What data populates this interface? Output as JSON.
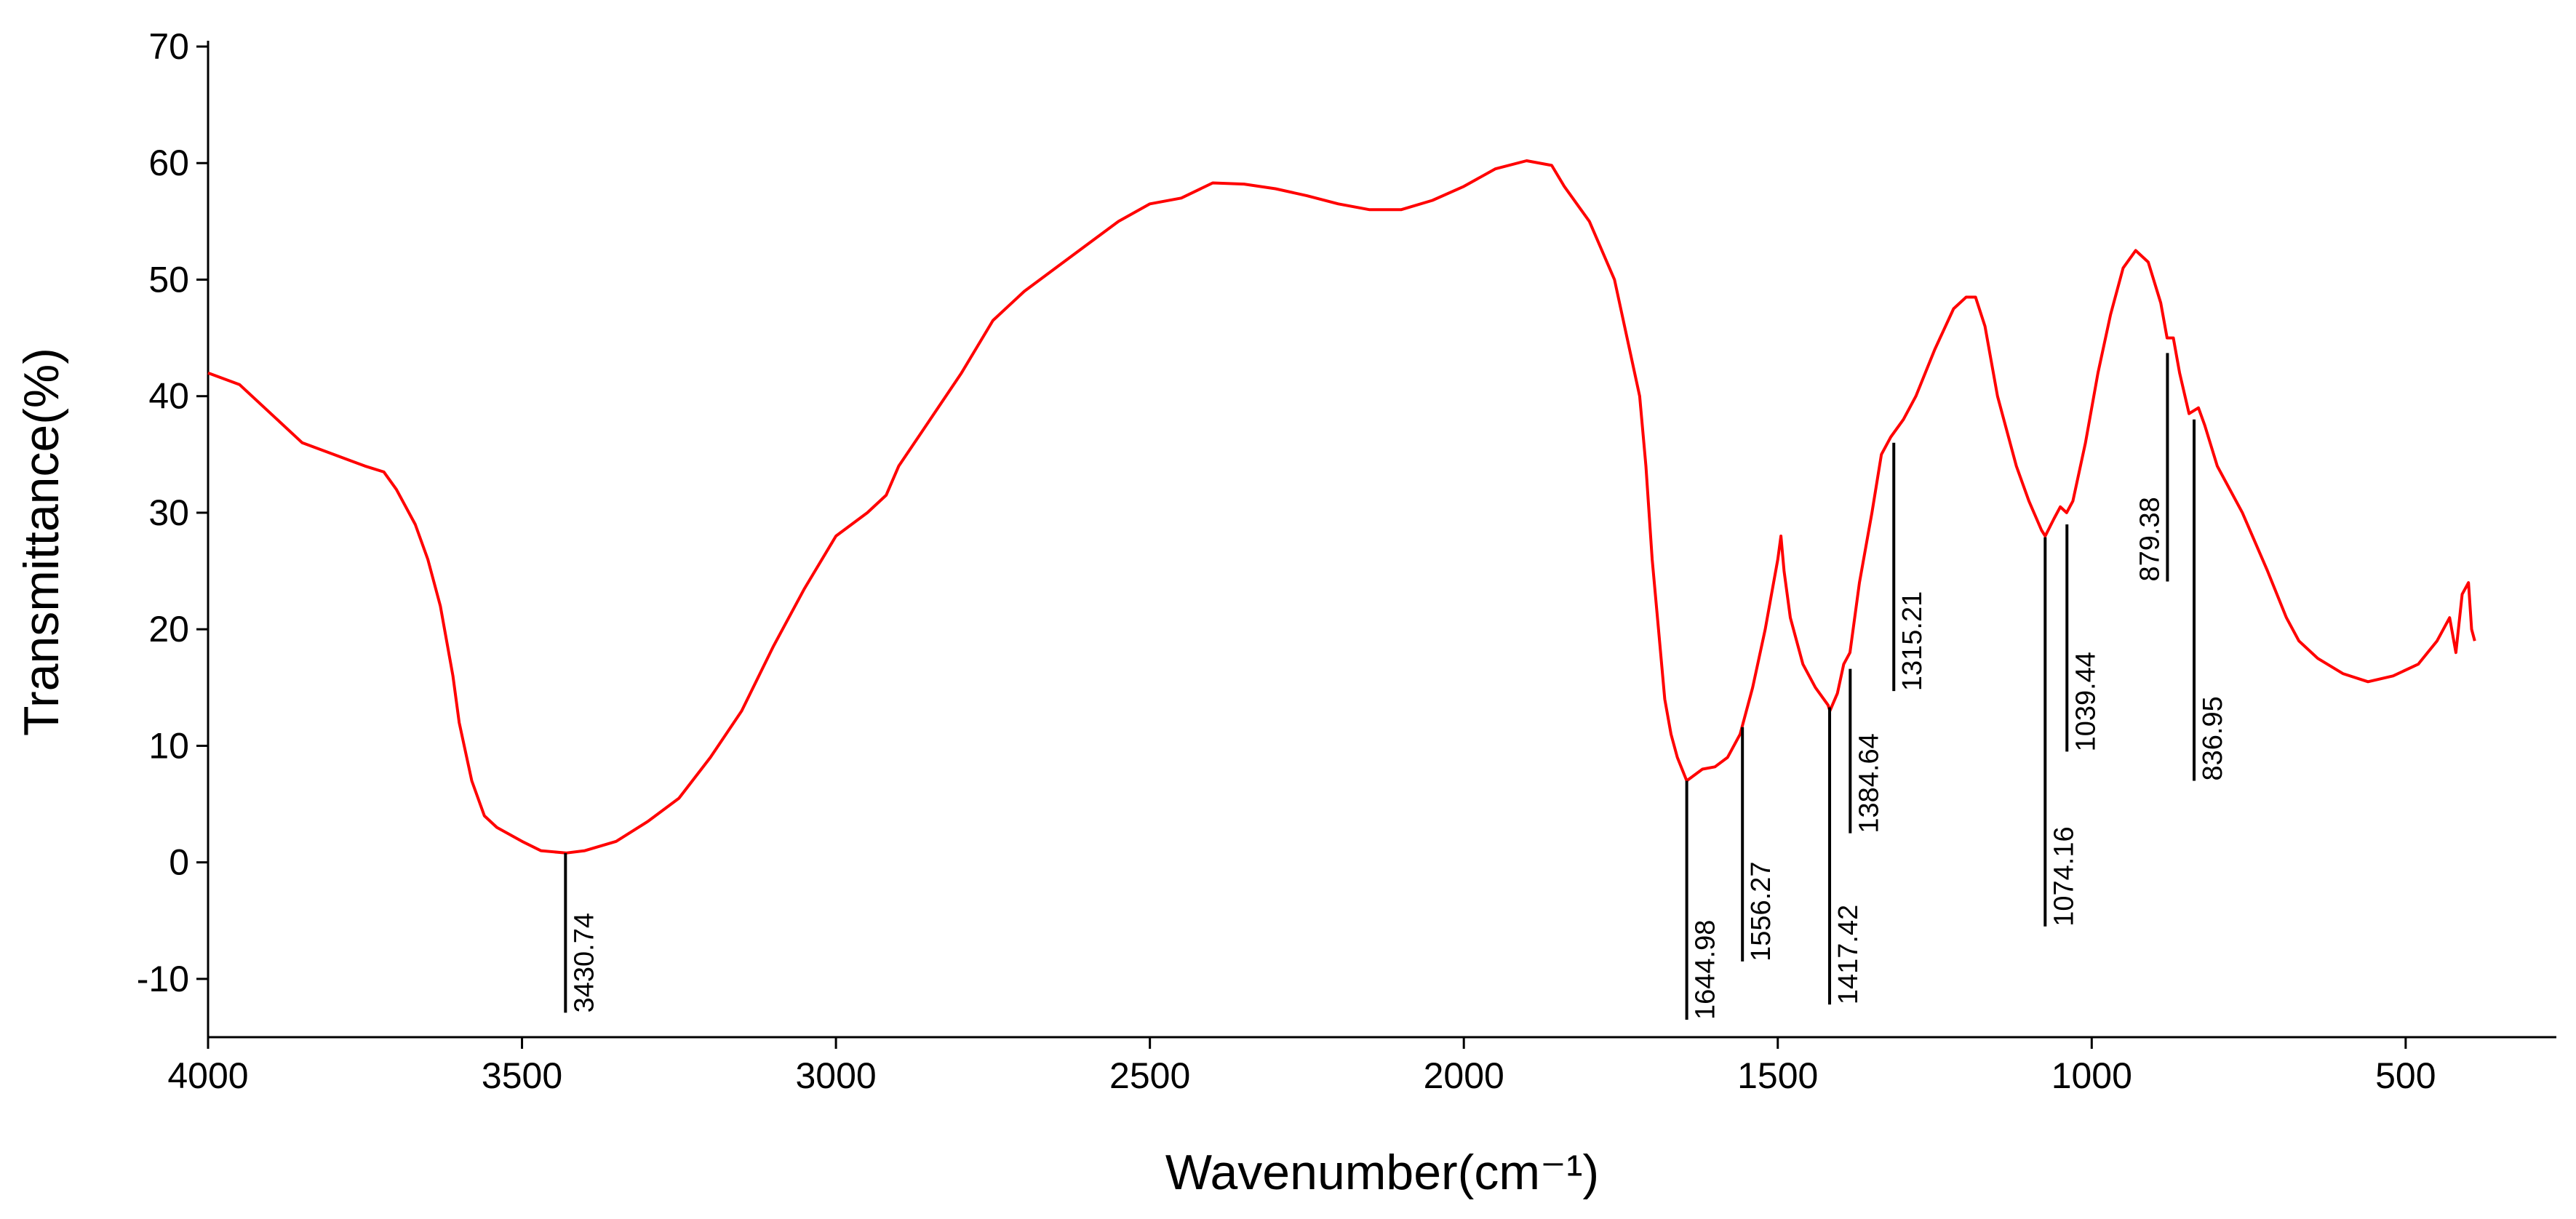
{
  "chart_data": {
    "type": "line",
    "xlabel": "Wavenumber(cm⁻¹)",
    "ylabel": "Transmittance(%)",
    "xlim": [
      4000,
      260
    ],
    "ylim": [
      -15,
      70
    ],
    "xticks": [
      4000,
      3500,
      3000,
      2500,
      2000,
      1500,
      1000,
      500
    ],
    "yticks": [
      -10,
      0,
      10,
      20,
      30,
      40,
      50,
      60,
      70
    ],
    "series": [
      {
        "color": "#ff0000",
        "x": [
          4000,
          3950,
          3900,
          3850,
          3800,
          3750,
          3720,
          3700,
          3670,
          3650,
          3630,
          3610,
          3600,
          3580,
          3560,
          3540,
          3500,
          3470,
          3430,
          3400,
          3350,
          3300,
          3250,
          3200,
          3150,
          3100,
          3050,
          3000,
          2950,
          2920,
          2900,
          2850,
          2800,
          2750,
          2700,
          2650,
          2600,
          2550,
          2500,
          2450,
          2400,
          2350,
          2300,
          2250,
          2200,
          2150,
          2100,
          2050,
          2000,
          1950,
          1900,
          1860,
          1840,
          1800,
          1760,
          1740,
          1720,
          1710,
          1700,
          1690,
          1680,
          1670,
          1660,
          1645,
          1620,
          1600,
          1580,
          1560,
          1540,
          1520,
          1510,
          1500,
          1495,
          1490,
          1480,
          1460,
          1440,
          1420,
          1417,
          1405,
          1395,
          1385,
          1370,
          1350,
          1335,
          1320,
          1300,
          1280,
          1250,
          1220,
          1200,
          1185,
          1170,
          1150,
          1120,
          1100,
          1080,
          1074,
          1060,
          1050,
          1040,
          1030,
          1010,
          990,
          970,
          950,
          930,
          910,
          890,
          880,
          870,
          860,
          845,
          830,
          820,
          800,
          760,
          720,
          690,
          670,
          640,
          600,
          560,
          520,
          480,
          450,
          430,
          420,
          410,
          400,
          395,
          390
        ],
        "values": [
          42,
          41,
          38.5,
          36,
          35,
          34,
          33.5,
          32,
          29,
          26,
          22,
          16,
          12,
          7,
          4,
          3,
          1.8,
          1,
          0.8,
          1,
          1.8,
          3.5,
          5.5,
          9,
          13,
          18.5,
          23.5,
          28,
          30,
          31.5,
          34,
          38,
          42,
          46.5,
          49,
          51,
          53,
          55,
          56.5,
          57,
          58.3,
          58.2,
          57.8,
          57.2,
          56.5,
          56,
          56,
          56.8,
          58,
          59.5,
          60.2,
          59.8,
          58,
          55,
          50,
          45,
          40,
          34,
          26,
          20,
          14,
          11,
          9,
          7,
          8,
          8.2,
          9,
          11,
          15,
          20,
          23,
          26,
          28,
          25,
          21,
          17,
          15,
          13.5,
          13,
          14.5,
          17,
          18,
          24,
          30,
          35,
          36.5,
          38,
          40,
          44,
          47.5,
          48.5,
          48.5,
          46,
          40,
          34,
          31,
          28.5,
          28,
          29.5,
          30.5,
          30,
          31,
          36,
          42,
          47,
          51,
          52.5,
          51.5,
          48,
          45,
          45,
          42,
          38.5,
          39,
          37.5,
          34,
          30,
          25,
          21,
          19,
          17.5,
          16.2,
          15.5,
          16,
          17,
          19,
          21,
          18,
          23,
          24,
          20,
          19
        ]
      }
    ],
    "annotations": [
      {
        "label": "3430.74",
        "x": 3430.74,
        "ymax": 0.8,
        "ymin": -12.9,
        "side": "right"
      },
      {
        "label": "1644.98",
        "x": 1644.98,
        "ymax": 7,
        "ymin": -13.5,
        "side": "right"
      },
      {
        "label": "1556.27",
        "x": 1556.27,
        "ymax": 11.6,
        "ymin": -8.5,
        "side": "right"
      },
      {
        "label": "1417.42",
        "x": 1417.42,
        "ymax": 13.3,
        "ymin": -12.2,
        "side": "right"
      },
      {
        "label": "1384.64",
        "x": 1384.64,
        "ymax": 16.6,
        "ymin": 2.5,
        "side": "right"
      },
      {
        "label": "1315.21",
        "x": 1315.21,
        "ymax": 36,
        "ymin": 14.7,
        "side": "right"
      },
      {
        "label": "1074.16",
        "x": 1074.16,
        "ymax": 27.9,
        "ymin": -5.5,
        "side": "right"
      },
      {
        "label": "1039.44",
        "x": 1039.44,
        "ymax": 29,
        "ymin": 9.5,
        "side": "right"
      },
      {
        "label": "879.38",
        "x": 879.38,
        "ymax": 43.7,
        "ymin": 24.1,
        "side": "left"
      },
      {
        "label": "836.95",
        "x": 836.95,
        "ymax": 38,
        "ymin": 7,
        "side": "right"
      }
    ]
  }
}
